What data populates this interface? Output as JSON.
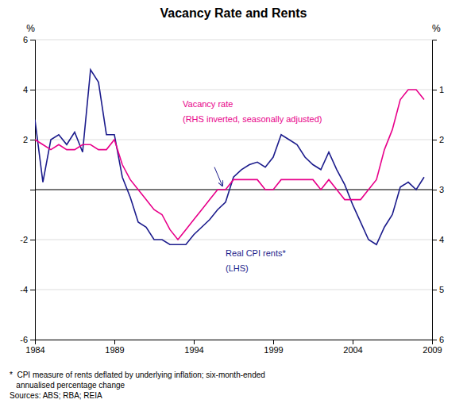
{
  "chart_data": {
    "type": "line",
    "title": "Vacancy Rate and Rents",
    "ylabel": "%",
    "y2label": "%",
    "x": [
      1984.0,
      1984.5,
      1985.0,
      1985.5,
      1986.0,
      1986.5,
      1987.0,
      1987.5,
      1988.0,
      1988.5,
      1989.0,
      1989.5,
      1990.0,
      1990.5,
      1991.0,
      1991.5,
      1992.0,
      1992.5,
      1993.0,
      1993.5,
      1994.0,
      1994.5,
      1995.0,
      1995.5,
      1996.0,
      1996.5,
      1997.0,
      1997.5,
      1998.0,
      1998.5,
      1999.0,
      1999.5,
      2000.0,
      2000.5,
      2001.0,
      2001.5,
      2002.0,
      2002.5,
      2003.0,
      2003.5,
      2004.0,
      2004.5,
      2005.0,
      2005.5,
      2006.0,
      2006.5,
      2007.0,
      2007.5,
      2008.0,
      2008.5
    ],
    "xlim": [
      1984,
      2009
    ],
    "xticks": [
      1984,
      1989,
      1994,
      1999,
      2004,
      2009
    ],
    "ylim": [
      -6,
      6
    ],
    "yticks": [
      -6,
      -4,
      -2,
      {
        "value": 0,
        "label": null
      },
      2,
      4,
      6
    ],
    "y2lim": [
      6,
      0
    ],
    "y2ticks": [
      1,
      2,
      3,
      4,
      5,
      6
    ],
    "grid": true,
    "series": [
      {
        "color": "#1C1C8C",
        "values": [
          2.8,
          0.3,
          2.0,
          2.2,
          1.8,
          2.3,
          1.5,
          4.8,
          4.3,
          2.2,
          2.2,
          0.5,
          -0.3,
          -1.3,
          -1.5,
          -2.0,
          -2.0,
          -2.2,
          -2.2,
          -2.2,
          -1.8,
          -1.5,
          -1.2,
          -0.8,
          -0.5,
          0.5,
          0.8,
          1.0,
          1.1,
          0.9,
          1.3,
          2.2,
          2.0,
          1.8,
          1.3,
          1.0,
          0.8,
          1.5,
          0.8,
          0.2,
          -0.6,
          -1.3,
          -2.0,
          -2.2,
          -1.5,
          -1.0,
          0.1,
          0.3,
          0.0,
          0.5
        ]
      },
      {
        "color": "#E8008A",
        "axis": "y2",
        "values": [
          2.0,
          2.1,
          2.2,
          2.1,
          2.2,
          2.2,
          2.1,
          2.1,
          2.2,
          2.2,
          2.0,
          2.5,
          2.8,
          3.0,
          3.2,
          3.4,
          3.5,
          3.8,
          4.0,
          3.8,
          3.6,
          3.4,
          3.2,
          3.0,
          3.0,
          2.8,
          2.8,
          2.8,
          2.8,
          3.0,
          3.0,
          2.8,
          2.8,
          2.8,
          2.8,
          2.8,
          3.0,
          2.8,
          3.0,
          3.2,
          3.2,
          3.2,
          3.0,
          2.8,
          2.2,
          1.8,
          1.2,
          1.0,
          1.0,
          1.2
        ]
      }
    ],
    "annotations": [
      {
        "text": "Vacancy rate",
        "color": "#E8008A"
      },
      {
        "text": "(RHS inverted, seasonally adjusted)",
        "color": "#E8008A"
      },
      {
        "text": "Real CPI rents*",
        "color": "#1C1C8C"
      },
      {
        "text": "(LHS)",
        "color": "#1C1C8C"
      }
    ],
    "footnote": "*  CPI measure of rents deflated by underlying inflation; six-month-ended\n   annualised percentage change\nSources: ABS; RBA; REIA"
  }
}
